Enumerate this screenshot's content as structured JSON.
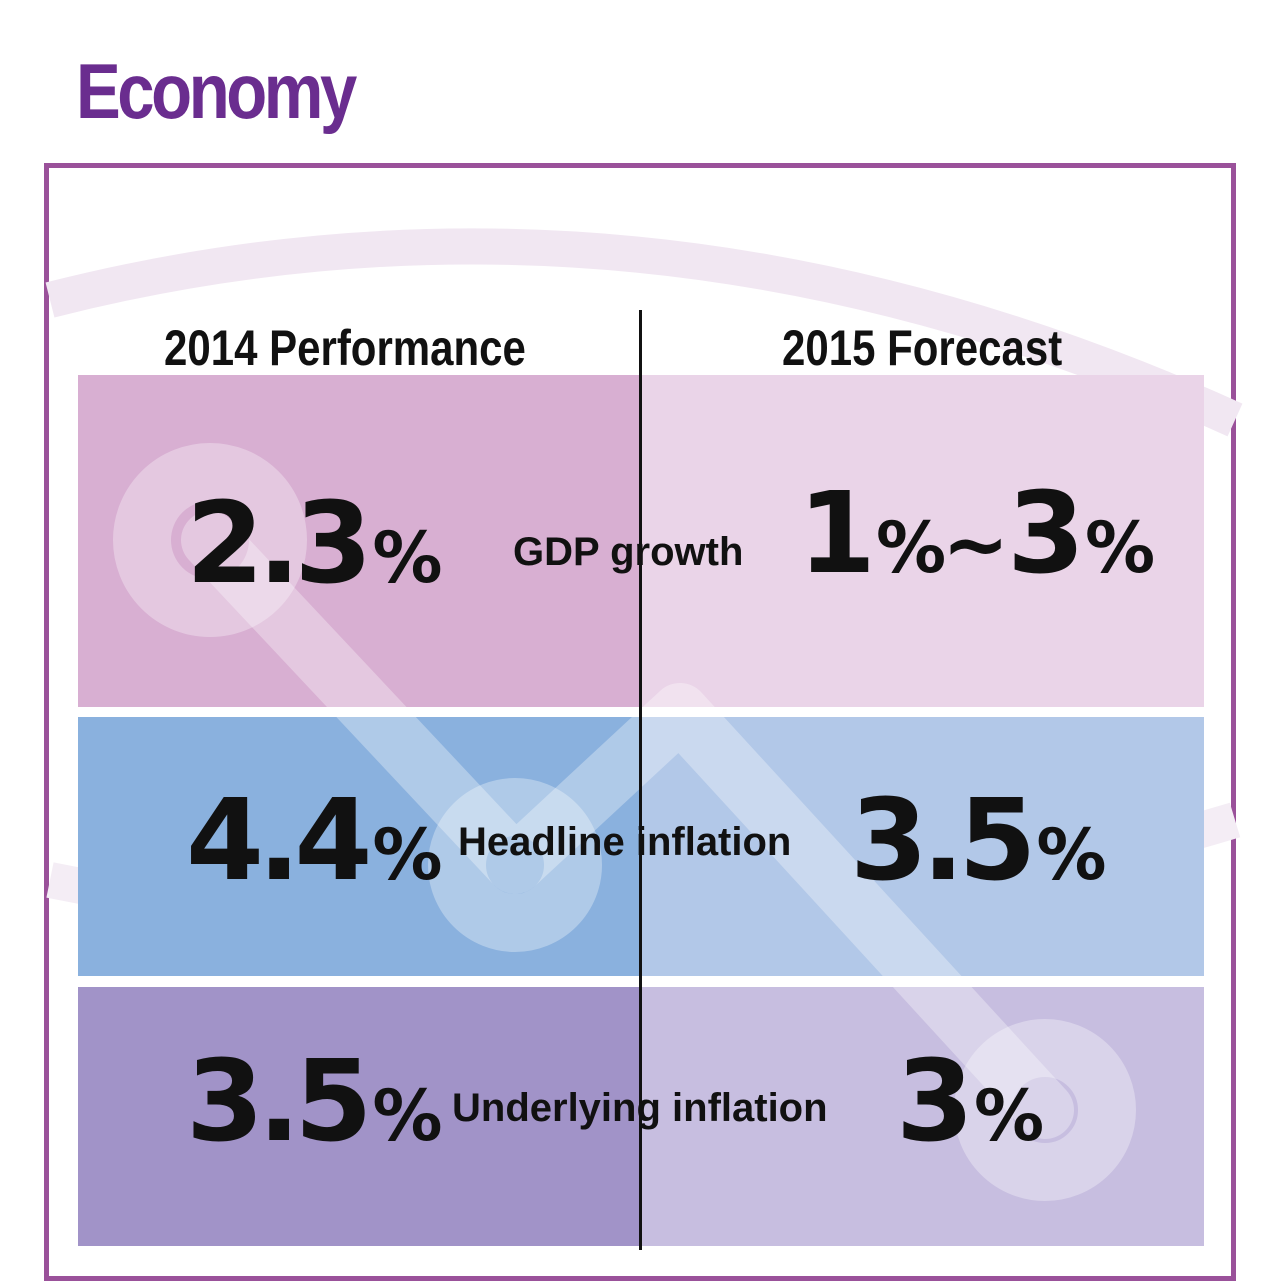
{
  "title": "Economy",
  "headers": {
    "performance": "2014 Performance",
    "forecast": "2015 Forecast"
  },
  "rows": [
    {
      "metric": "GDP growth",
      "actual": "2.3",
      "forecast_low": "1",
      "forecast_sep": "~",
      "forecast": "3"
    },
    {
      "metric": "Headline inflation",
      "actual": "4.4",
      "forecast": "3.5"
    },
    {
      "metric": "Underlying inflation",
      "actual": "3.5",
      "forecast": "3"
    }
  ],
  "unit": "%",
  "colors": {
    "title": "#6a2d8f",
    "frame": "#9a519a",
    "gdp_left": "#d8afd2",
    "gdp_right": "#ead4e8",
    "headline_left": "#8ab1de",
    "headline_right": "#b2c8e8",
    "underlying_left": "#a193c8",
    "underlying_right": "#c7bee0"
  }
}
